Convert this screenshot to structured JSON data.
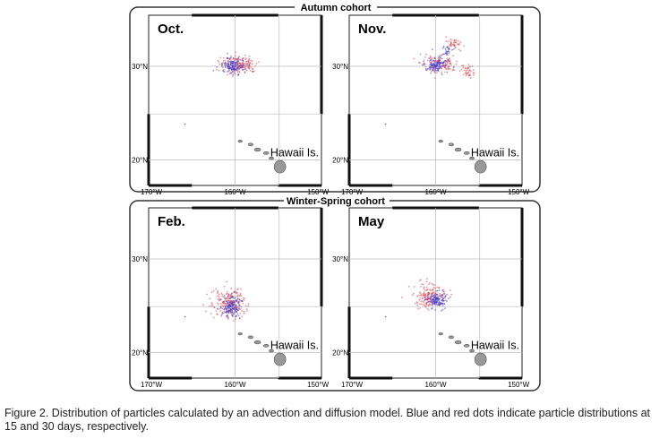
{
  "cohorts": [
    {
      "title": "Autumn cohort",
      "panels": [
        {
          "month": "Oct.",
          "lat_labels": [
            "30°N",
            "20°N"
          ],
          "lon_labels": [
            "170°W",
            "160°W",
            "150°W"
          ],
          "island_label": "Hawaii Is."
        },
        {
          "month": "Nov.",
          "lat_labels": [
            "30°N",
            "20°N"
          ],
          "lon_labels": [
            "170°W",
            "160°W",
            "150°W"
          ],
          "island_label": "Hawaii Is."
        }
      ]
    },
    {
      "title": "Winter-Spring cohort",
      "panels": [
        {
          "month": "Feb.",
          "lat_labels": [
            "30°N",
            "20°N"
          ],
          "lon_labels": [
            "170°W",
            "160°W",
            "150°W"
          ],
          "island_label": "Hawaii Is."
        },
        {
          "month": "May",
          "lat_labels": [
            "30°N",
            "20°N"
          ],
          "lon_labels": [
            "170°W",
            "160°W",
            "150°W"
          ],
          "island_label": "Hawaii Is."
        }
      ]
    }
  ],
  "legend_colors": {
    "day15": "#3a3acf",
    "day30": "#e0404a"
  },
  "caption": "Figure 2. Distribution of particles calculated by an advection and diffusion model. Blue and red dots indicate particle distributions at 15 and 30 days, respectively."
}
